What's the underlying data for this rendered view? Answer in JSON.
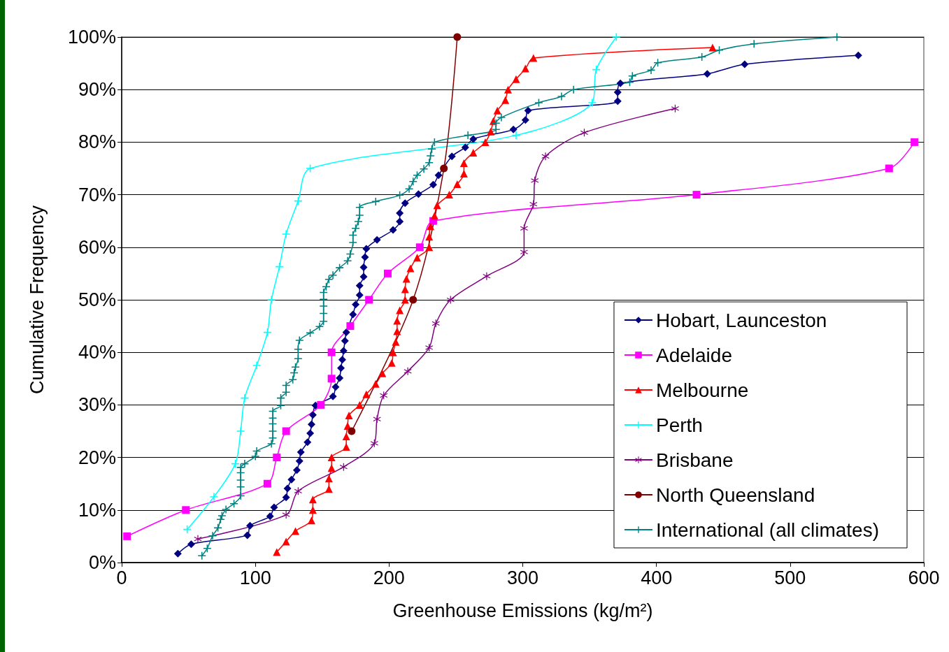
{
  "chart_data": {
    "type": "line",
    "xlabel": "Greenhouse Emissions (kg/m²)",
    "ylabel": "Cumulative Frequency",
    "xlim": [
      0,
      600
    ],
    "xticks": [
      0,
      100,
      200,
      300,
      400,
      500,
      600
    ],
    "ylim": [
      0,
      100
    ],
    "yticks": [
      {
        "value": 0,
        "label": "0%"
      },
      {
        "value": 10,
        "label": "10%"
      },
      {
        "value": 20,
        "label": "20%"
      },
      {
        "value": 30,
        "label": "30%"
      },
      {
        "value": 40,
        "label": "40%"
      },
      {
        "value": 50,
        "label": "50%"
      },
      {
        "value": 60,
        "label": "60%"
      },
      {
        "value": 70,
        "label": "70%"
      },
      {
        "value": 80,
        "label": "80%"
      },
      {
        "value": 90,
        "label": "90%"
      },
      {
        "value": 100,
        "label": "100%"
      }
    ],
    "grid": "y",
    "legend": "bottom right",
    "series": [
      {
        "name": "Hobart, Launceston",
        "color": "#000080",
        "marker": "diamond",
        "x": [
          42,
          52,
          94,
          96,
          111,
          114,
          123,
          124,
          127,
          131,
          133,
          134,
          139,
          141,
          142,
          143,
          145,
          158,
          160,
          163,
          164,
          165,
          166,
          167,
          168,
          173,
          175,
          178,
          178,
          181,
          181,
          182,
          183,
          191,
          203,
          208,
          208,
          212,
          222,
          233,
          237,
          247,
          257,
          263,
          293,
          302,
          304,
          371,
          371,
          373,
          438,
          466,
          551
        ],
        "values": [
          1.7,
          3.5,
          5.2,
          7.0,
          8.8,
          10.5,
          12.4,
          14.1,
          15.8,
          17.6,
          19.3,
          21.0,
          22.9,
          24.6,
          26.3,
          28.1,
          29.9,
          31.6,
          33.4,
          35.1,
          37.0,
          38.6,
          40.3,
          42.2,
          43.8,
          47.2,
          49.1,
          50.9,
          52.7,
          54.4,
          56.2,
          58.1,
          59.7,
          61.4,
          63.3,
          64.9,
          66.5,
          68.4,
          70.1,
          71.9,
          73.7,
          77.3,
          79.0,
          80.6,
          82.4,
          84.2,
          86.0,
          87.8,
          89.5,
          91.2,
          93.0,
          94.8,
          96.5
        ]
      },
      {
        "name": "Adelaide",
        "color": "#ff00ff",
        "marker": "square",
        "x": [
          4,
          48,
          109,
          116,
          123,
          149,
          157,
          157,
          171,
          185,
          199,
          223,
          233,
          430,
          574,
          593
        ],
        "values": [
          5,
          10,
          15,
          20,
          25,
          30,
          35,
          40,
          45,
          50,
          55,
          60,
          65,
          70,
          75,
          80
        ]
      },
      {
        "name": "Melbourne",
        "color": "#ff0000",
        "marker": "triangle",
        "x": [
          116,
          123,
          130,
          142,
          143,
          143,
          155,
          155,
          157,
          157,
          168,
          168,
          169,
          170,
          178,
          183,
          190,
          195,
          202,
          203,
          205,
          206,
          206,
          208,
          212,
          212,
          213,
          216,
          221,
          230,
          230,
          231,
          234,
          236,
          245,
          251,
          256,
          256,
          263,
          272,
          276,
          278,
          281,
          287,
          289,
          295,
          302,
          308,
          442
        ],
        "values": [
          2,
          4,
          6,
          8,
          10,
          12,
          14,
          16,
          18,
          20,
          22,
          24,
          26,
          28,
          30,
          32,
          34,
          36,
          38,
          40,
          42,
          44,
          46,
          48,
          50,
          52,
          54,
          56,
          58,
          60,
          62,
          64,
          66,
          68,
          70,
          72,
          74,
          76,
          78,
          80,
          82,
          84,
          86,
          88,
          90,
          92,
          94,
          96,
          98
        ]
      },
      {
        "name": "Perth",
        "color": "#00ffff",
        "marker": "cross",
        "x": [
          49,
          69,
          85,
          89,
          92,
          101,
          109,
          112,
          118,
          123,
          132,
          141,
          295,
          352,
          355,
          370
        ],
        "values": [
          6.3,
          12.5,
          18.8,
          25,
          31.3,
          37.5,
          43.8,
          50,
          56.3,
          62.5,
          68.8,
          75,
          81.3,
          87.5,
          93.8,
          100
        ]
      },
      {
        "name": "Brisbane",
        "color": "#800080",
        "marker": "star",
        "x": [
          57,
          123,
          132,
          166,
          189,
          191,
          196,
          214,
          230,
          235,
          246,
          273,
          301,
          301,
          308,
          309,
          317,
          346,
          414
        ],
        "values": [
          4.5,
          9.1,
          13.6,
          18.2,
          22.7,
          27.3,
          31.8,
          36.4,
          40.9,
          45.5,
          50,
          54.5,
          59.1,
          63.6,
          68.2,
          72.7,
          77.3,
          81.8,
          86.4
        ]
      },
      {
        "name": "North Queensland",
        "color": "#800000",
        "marker": "circle",
        "x": [
          172,
          218,
          241,
          251
        ],
        "values": [
          25,
          50,
          75,
          100
        ]
      },
      {
        "name": "International (all climates)",
        "color": "#008080",
        "marker": "cross",
        "x": [
          60,
          64,
          68,
          72,
          74,
          75,
          78,
          84,
          89,
          89,
          89,
          89,
          89,
          92,
          100,
          101,
          112,
          113,
          113,
          113,
          113,
          113,
          119,
          119,
          123,
          123,
          128,
          129,
          130,
          132,
          132,
          133,
          141,
          148,
          151,
          151,
          151,
          151,
          151,
          153,
          155,
          158,
          163,
          169,
          171,
          173,
          173,
          175,
          177,
          178,
          178,
          190,
          208,
          215,
          218,
          221,
          226,
          230,
          231,
          232,
          234,
          259,
          280,
          280,
          284,
          312,
          329,
          338,
          380,
          382,
          396,
          401,
          434,
          447,
          473,
          535
        ],
        "values": [
          1.3,
          2.7,
          5.1,
          6.6,
          8.2,
          8.9,
          10.1,
          11.2,
          12.7,
          14.4,
          15.7,
          17.1,
          18.1,
          18.8,
          20.2,
          21.2,
          22.6,
          23.7,
          25.0,
          26.4,
          27.5,
          28.8,
          29.9,
          31.3,
          32.4,
          33.7,
          34.8,
          36.1,
          37.2,
          38.8,
          40.6,
          42.3,
          43.7,
          44.9,
          45.9,
          47.4,
          48.8,
          50.1,
          51.4,
          52.5,
          53.9,
          54.7,
          56.1,
          57.4,
          58.7,
          60.9,
          62.3,
          63.6,
          64.9,
          66.1,
          67.6,
          68.7,
          69.9,
          71.1,
          72.5,
          73.7,
          74.9,
          76.1,
          77.4,
          78.7,
          80.0,
          81.3,
          82.4,
          83.6,
          84.7,
          87.5,
          88.7,
          90.0,
          91.4,
          92.6,
          93.7,
          95.1,
          96.2,
          97.5,
          98.7,
          100
        ]
      }
    ]
  }
}
